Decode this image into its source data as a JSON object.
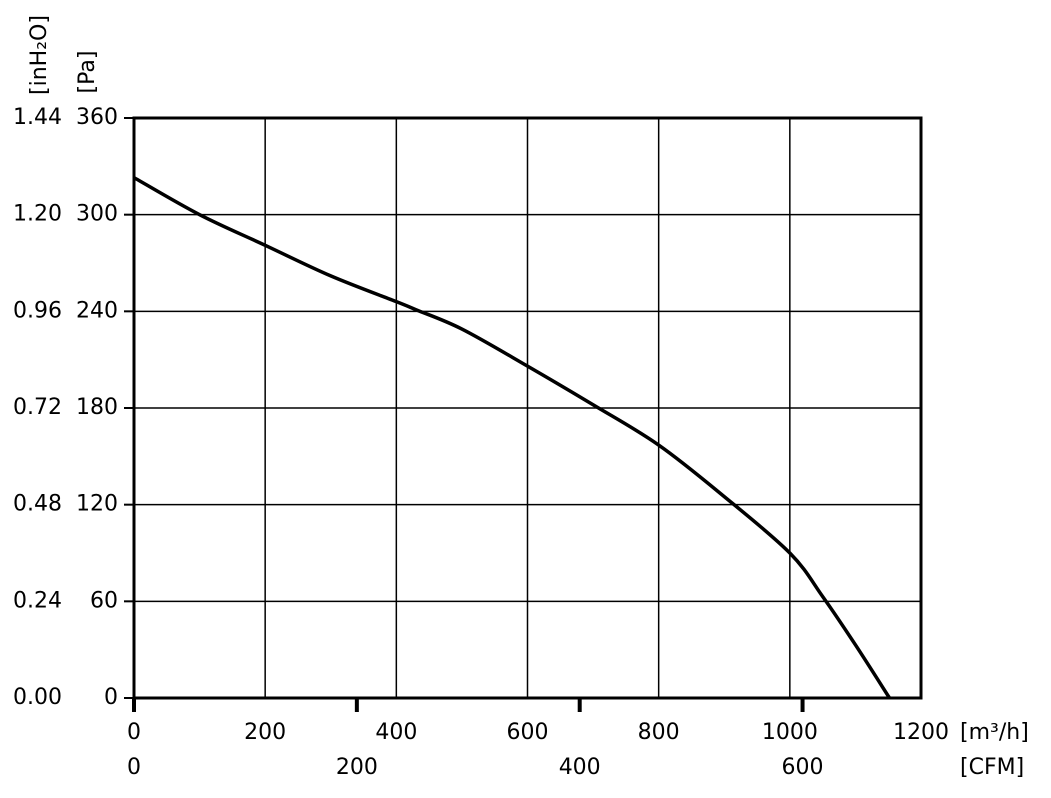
{
  "chart_data": {
    "type": "line",
    "x": [
      0,
      100,
      200,
      300,
      400,
      430,
      500,
      600,
      700,
      800,
      900,
      1000,
      1050,
      1100,
      1152
    ],
    "values": [
      323,
      300,
      281,
      262,
      246,
      241,
      229,
      206,
      182,
      157,
      125,
      90,
      63,
      33,
      0
    ],
    "color": "#000000",
    "xlim": [
      0,
      1200
    ],
    "xticks": [
      0,
      200,
      400,
      600,
      800,
      1000,
      1200
    ],
    "x_label": "[m³/h]",
    "x2lim": [
      0,
      706.3
    ],
    "x2ticks": [
      0,
      200,
      400,
      600
    ],
    "x2_label": "[CFM]",
    "ylim": [
      0,
      360
    ],
    "yticks": [
      0,
      60,
      120,
      180,
      240,
      300,
      360
    ],
    "y_label": "[Pa]",
    "y2lim": [
      0,
      1.44
    ],
    "y2ticks": [
      {
        "value": 0,
        "label": "0.00"
      },
      0.24,
      0.48,
      0.72,
      0.96,
      {
        "value": 1.2,
        "label": "1.20"
      },
      1.44
    ],
    "y2_label": "[inH₂O]",
    "grid": true
  }
}
